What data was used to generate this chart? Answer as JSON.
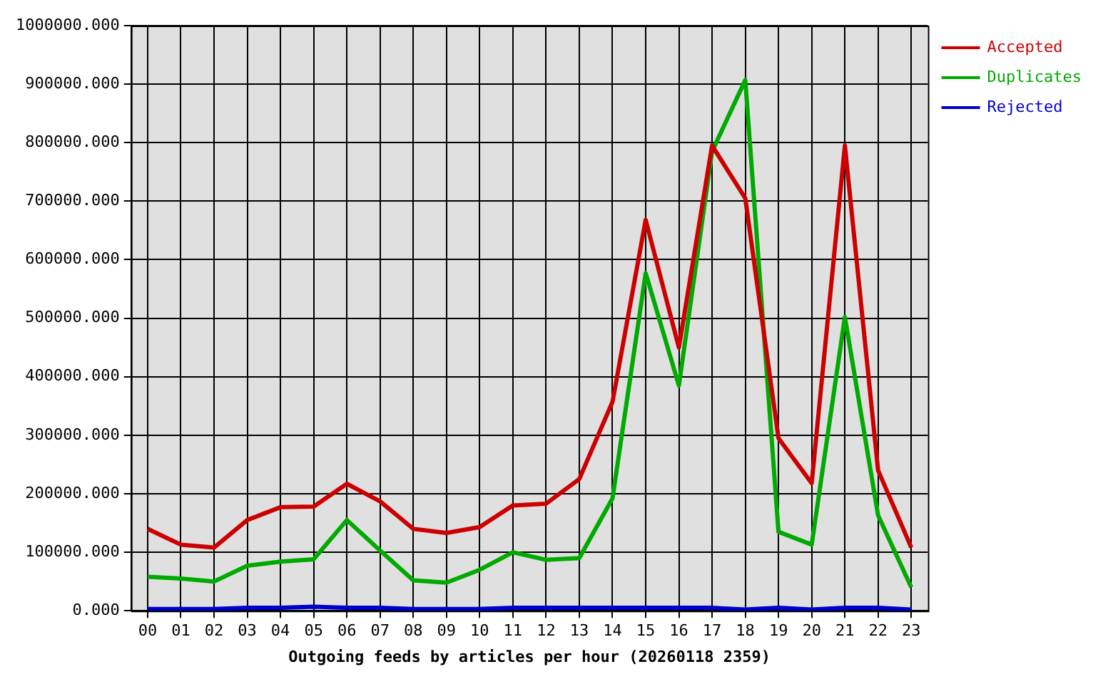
{
  "chart_data": {
    "type": "line",
    "xlabel": "Outgoing feeds by articles per hour (20260118 2359)",
    "categories": [
      "00",
      "01",
      "02",
      "03",
      "04",
      "05",
      "06",
      "07",
      "08",
      "09",
      "10",
      "11",
      "12",
      "13",
      "14",
      "15",
      "16",
      "17",
      "18",
      "19",
      "20",
      "21",
      "22",
      "23"
    ],
    "series": [
      {
        "name": "Accepted",
        "color": "#cc0000",
        "values": [
          140000,
          113000,
          108000,
          155000,
          177000,
          178000,
          217000,
          187000,
          140000,
          133000,
          143000,
          180000,
          183000,
          225000,
          357000,
          668000,
          450000,
          795000,
          705000,
          295000,
          218000,
          795000,
          240000,
          108000
        ]
      },
      {
        "name": "Duplicates",
        "color": "#00aa00",
        "values": [
          58000,
          55000,
          50000,
          77000,
          84000,
          88000,
          155000,
          103000,
          52000,
          48000,
          70000,
          100000,
          87000,
          90000,
          192000,
          577000,
          385000,
          785000,
          907000,
          135000,
          113000,
          502000,
          163000,
          40000
        ]
      },
      {
        "name": "Rejected",
        "color": "#0000cc",
        "values": [
          3000,
          3000,
          3000,
          5000,
          5000,
          7000,
          5000,
          5000,
          3000,
          3000,
          3000,
          5000,
          5000,
          5000,
          5000,
          5000,
          5000,
          5000,
          2000,
          5000,
          2000,
          5000,
          5000,
          2000
        ]
      }
    ],
    "ylim": [
      0,
      1000000
    ],
    "yticks": [
      {
        "value": 0,
        "label": "0.000"
      },
      {
        "value": 100000,
        "label": "100000.000"
      },
      {
        "value": 200000,
        "label": "200000.000"
      },
      {
        "value": 300000,
        "label": "300000.000"
      },
      {
        "value": 400000,
        "label": "400000.000"
      },
      {
        "value": 500000,
        "label": "500000.000"
      },
      {
        "value": 600000,
        "label": "600000.000"
      },
      {
        "value": 700000,
        "label": "700000.000"
      },
      {
        "value": 800000,
        "label": "800000.000"
      },
      {
        "value": 900000,
        "label": "900000.000"
      },
      {
        "value": 1000000,
        "label": "1000000.000"
      }
    ],
    "grid": true,
    "legend": "top right",
    "marker": "none",
    "line_style": "solid"
  }
}
